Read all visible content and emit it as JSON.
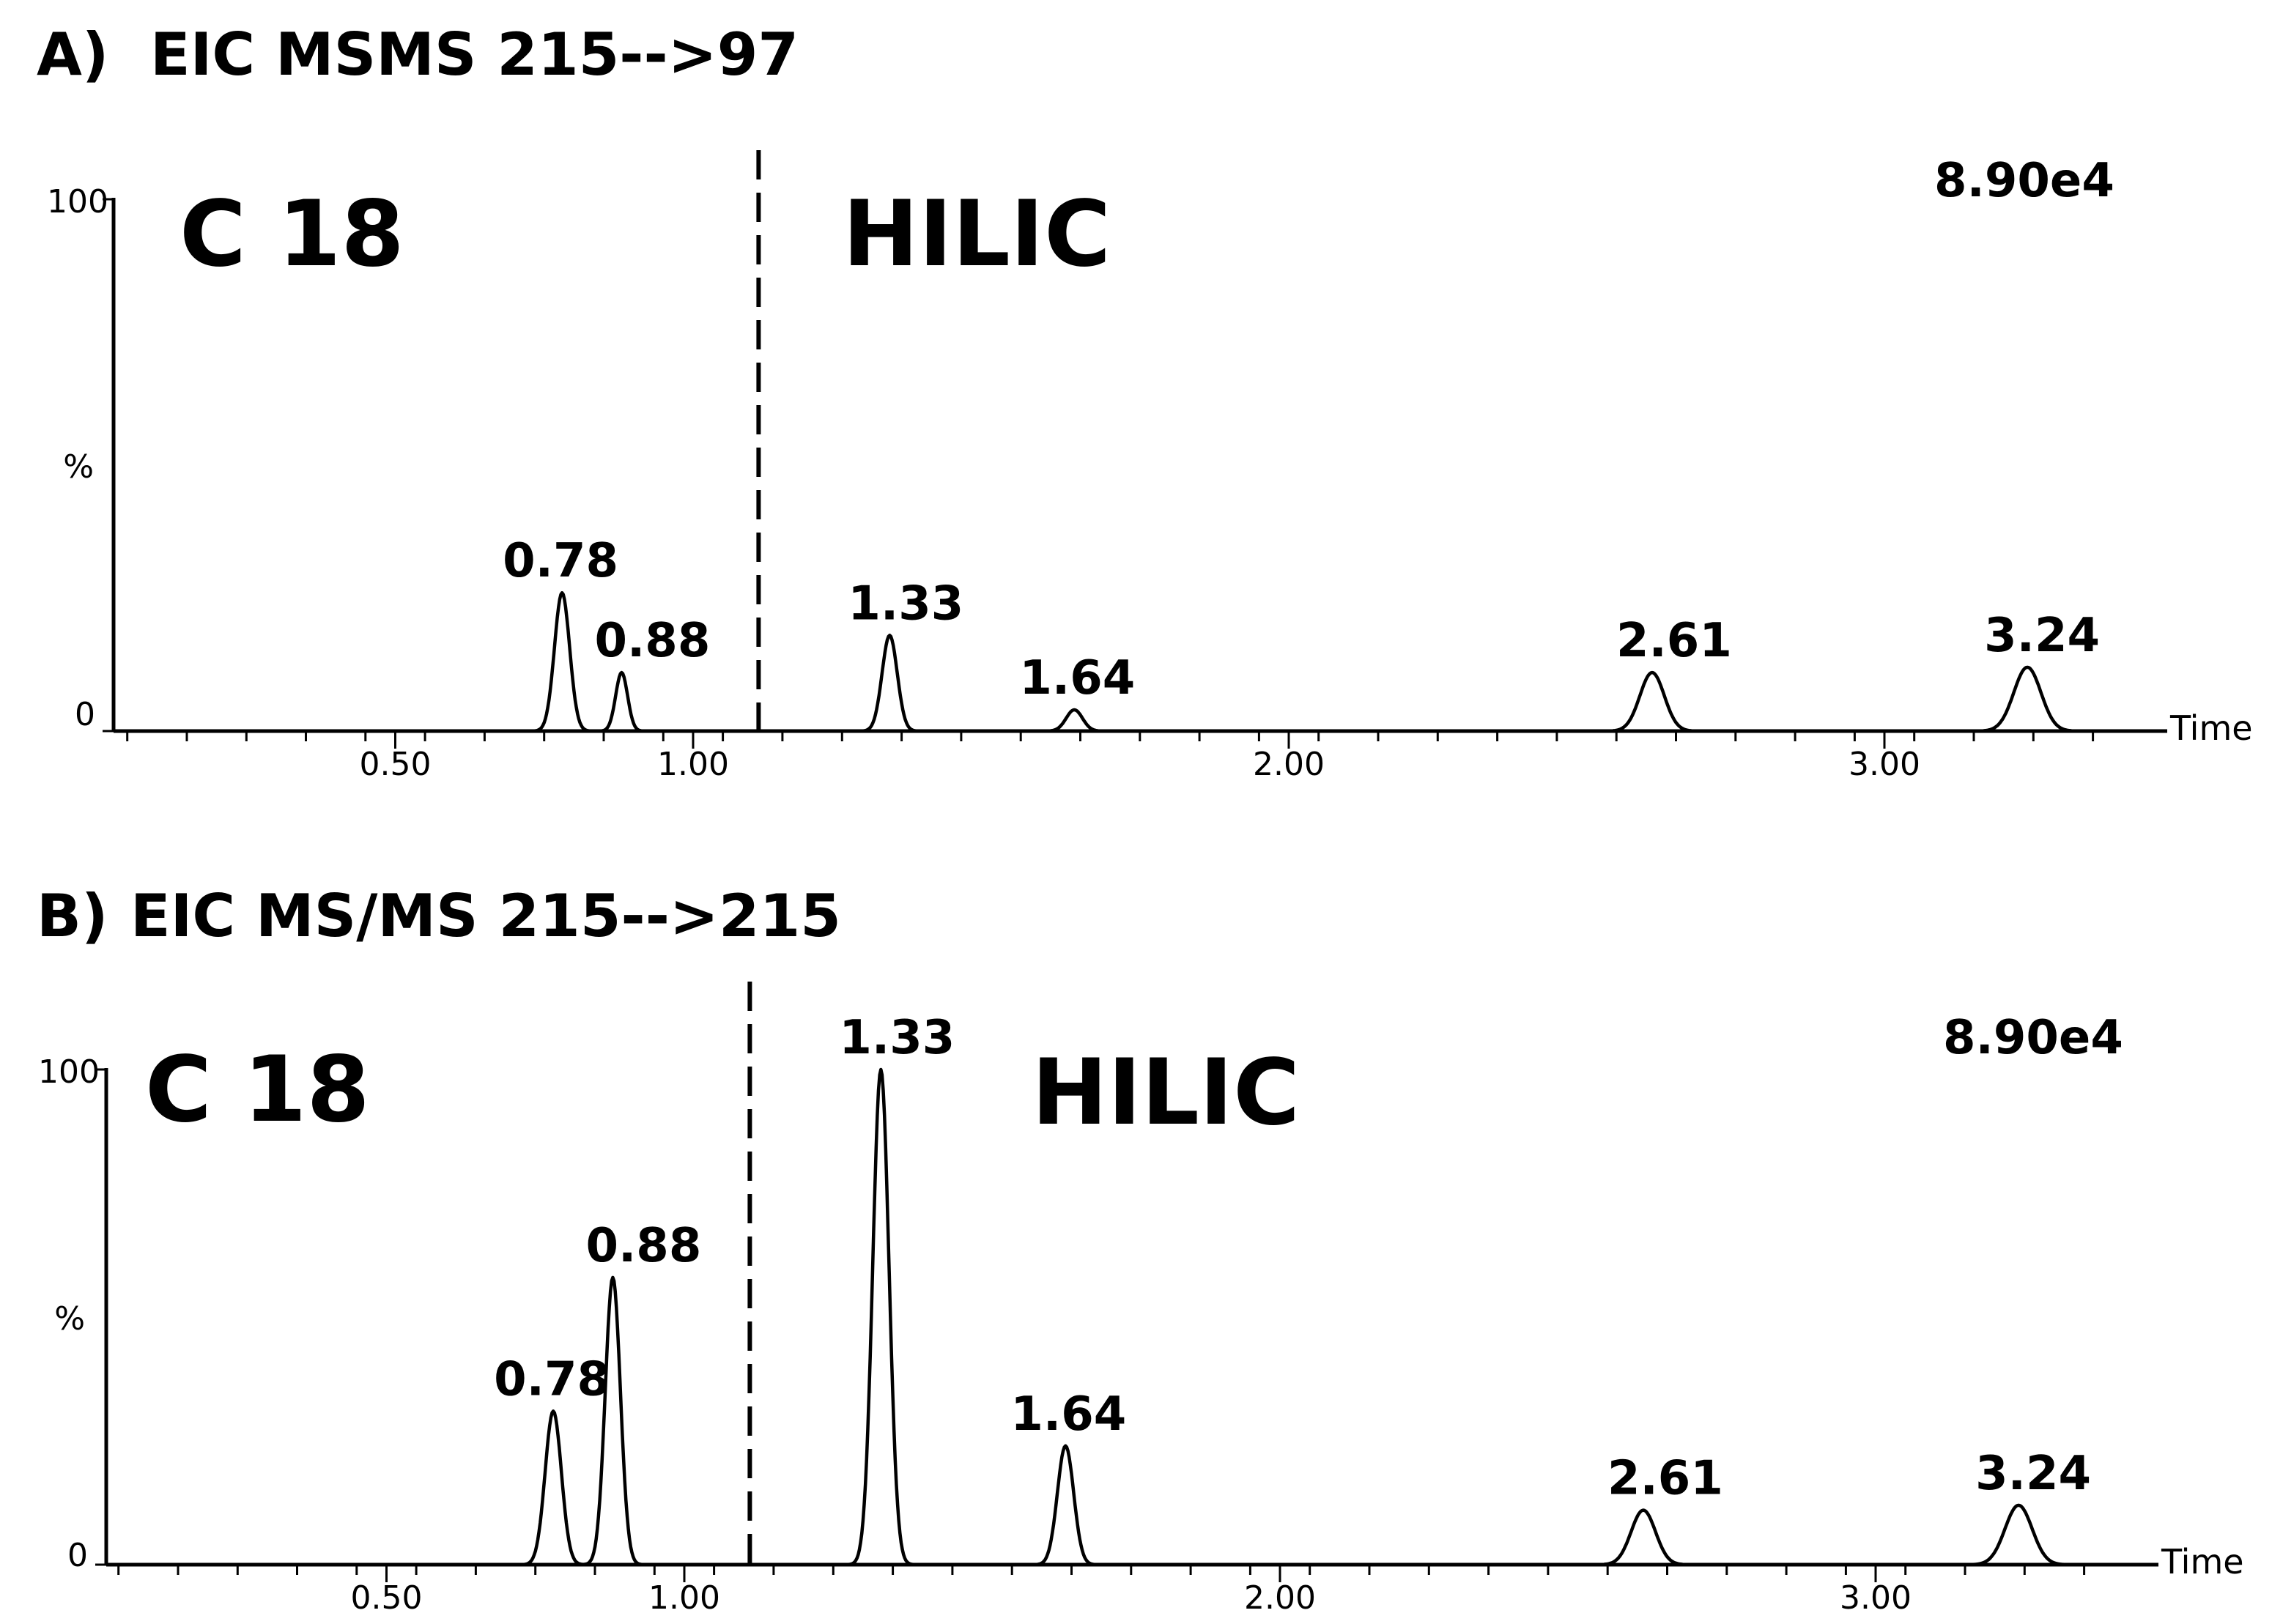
{
  "figure": {
    "panels": [
      {
        "letter": "A)",
        "title": "EIC MSMS 215-->97",
        "scale": "8.90e4",
        "left_label": "C 18",
        "right_label": "HILIC",
        "y_top_label": "100",
        "y_mid_label": "%",
        "y_zero_label": "0",
        "x_axis_label": "Time",
        "x_tick_labels": [
          "0.50",
          "1.00",
          "2.00",
          "3.00"
        ]
      },
      {
        "letter": "B)",
        "title": "EIC MS/MS 215-->215",
        "scale": "8.90e4",
        "left_label": "C 18",
        "right_label": "HILIC",
        "y_top_label": "100",
        "y_mid_label": "%",
        "y_zero_label": "0",
        "x_axis_label": "Time",
        "x_tick_labels": [
          "0.50",
          "1.00",
          "2.00",
          "3.00"
        ]
      }
    ]
  },
  "chart_data": [
    {
      "type": "line",
      "title": "A) EIC MSMS 215-->97",
      "xlabel": "Time",
      "ylabel": "%",
      "xlim": [
        0.0,
        3.45
      ],
      "ylim": [
        0,
        100
      ],
      "x_ticks": [
        0.5,
        1.0,
        2.0,
        3.0
      ],
      "divider_time": 1.11,
      "peaks": [
        {
          "time": 0.78,
          "label": "0.78",
          "height": 26,
          "width": 0.028
        },
        {
          "time": 0.88,
          "label": "0.88",
          "height": 11,
          "width": 0.022
        },
        {
          "time": 1.33,
          "label": "1.33",
          "height": 18,
          "width": 0.028
        },
        {
          "time": 1.64,
          "label": "1.64",
          "height": 4,
          "width": 0.03
        },
        {
          "time": 2.61,
          "label": "2.61",
          "height": 11,
          "width": 0.045
        },
        {
          "time": 3.24,
          "label": "3.24",
          "height": 12,
          "width": 0.05
        }
      ]
    },
    {
      "type": "line",
      "title": "B) EIC MS/MS 215-->215",
      "xlabel": "Time",
      "ylabel": "%",
      "xlim": [
        0.0,
        3.45
      ],
      "ylim": [
        0,
        100
      ],
      "x_ticks": [
        0.5,
        1.0,
        2.0,
        3.0
      ],
      "divider_time": 1.11,
      "peaks": [
        {
          "time": 0.78,
          "label": "0.78",
          "height": 31,
          "width": 0.03
        },
        {
          "time": 0.88,
          "label": "0.88",
          "height": 58,
          "width": 0.028
        },
        {
          "time": 1.33,
          "label": "1.33",
          "height": 100,
          "width": 0.03
        },
        {
          "time": 1.64,
          "label": "1.64",
          "height": 24,
          "width": 0.03
        },
        {
          "time": 2.61,
          "label": "2.61",
          "height": 11,
          "width": 0.045
        },
        {
          "time": 3.24,
          "label": "3.24",
          "height": 12,
          "width": 0.05
        }
      ]
    }
  ]
}
